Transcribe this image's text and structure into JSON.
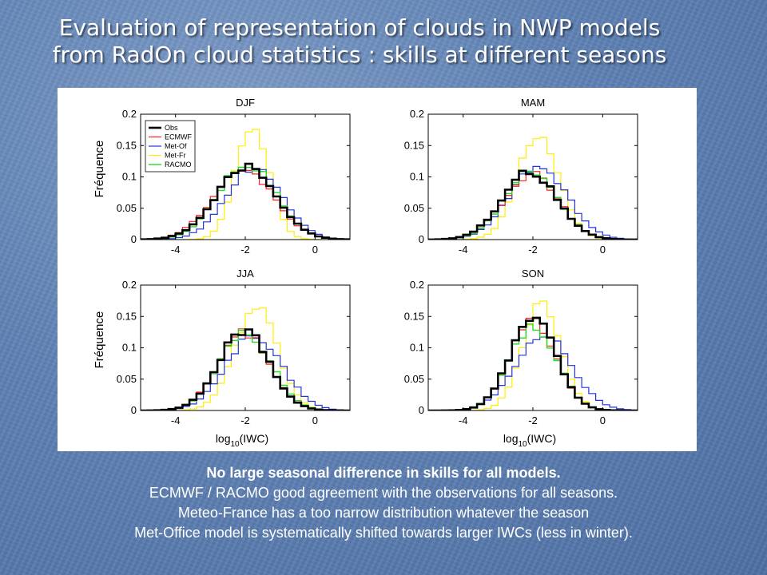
{
  "slide": {
    "title_line1": "Evaluation of representation of clouds in NWP models",
    "title_line2": "from RadOn cloud statistics : skills at different seasons",
    "caption_line1": "No large seasonal difference in skills for all models.",
    "caption_line2": "ECMWF / RACMO good agreement with the observations for all seasons.",
    "caption_line3": "Meteo-France has a too narrow distribution whatever the season",
    "caption_line4": "Met-Office model is systematically shifted towards larger IWCs (less in winter)."
  },
  "colors": {
    "Obs": "#000000",
    "ECMWF": "#ff2222",
    "Met-Of": "#2233dd",
    "Met-Fr": "#ffee00",
    "RACMO": "#22dd22"
  },
  "chart_data": [
    {
      "type": "line",
      "title": "DJF",
      "xlabel": "",
      "ylabel": "Fréquence",
      "xlim": [
        -5,
        1
      ],
      "ylim": [
        0,
        0.2
      ],
      "xticks": [
        -4,
        -2,
        0
      ],
      "yticks": [
        0,
        0.05,
        0.1,
        0.15,
        0.2
      ],
      "ytick_labels": [
        "0",
        "0.05",
        "0.1",
        "0.15",
        "0.2"
      ],
      "legend": [
        "Obs",
        "ECMWF",
        "Met-Of",
        "Met-Fr",
        "RACMO"
      ],
      "legend_position": "top-left",
      "series": [
        {
          "name": "Obs",
          "mean": -2.0,
          "sd": 0.85,
          "peak": 0.115
        },
        {
          "name": "ECMWF",
          "mean": -2.05,
          "sd": 0.87,
          "peak": 0.112
        },
        {
          "name": "Met-Of",
          "mean": -1.75,
          "sd": 0.8,
          "peak": 0.115
        },
        {
          "name": "Met-Fr",
          "mean": -1.8,
          "sd": 0.48,
          "peak": 0.183
        },
        {
          "name": "RACMO",
          "mean": -1.95,
          "sd": 0.82,
          "peak": 0.122
        }
      ]
    },
    {
      "type": "line",
      "title": "MAM",
      "xlabel": "",
      "ylabel": "",
      "xlim": [
        -5,
        1
      ],
      "ylim": [
        0,
        0.2
      ],
      "xticks": [
        -4,
        -2,
        0
      ],
      "yticks": [
        0,
        0.05,
        0.1,
        0.15,
        0.2
      ],
      "ytick_labels": [
        "0",
        "0.05",
        "0.1",
        "0.15",
        "0.2"
      ],
      "series": [
        {
          "name": "Obs",
          "mean": -2.1,
          "sd": 0.78,
          "peak": 0.108
        },
        {
          "name": "ECMWF",
          "mean": -2.05,
          "sd": 0.78,
          "peak": 0.105
        },
        {
          "name": "Met-Of",
          "mean": -1.85,
          "sd": 0.82,
          "peak": 0.117
        },
        {
          "name": "Met-Fr",
          "mean": -1.85,
          "sd": 0.6,
          "peak": 0.163
        },
        {
          "name": "RACMO",
          "mean": -2.05,
          "sd": 0.76,
          "peak": 0.11
        }
      ]
    },
    {
      "type": "line",
      "title": "JJA",
      "xlabel": "log10(IWC)",
      "ylabel": "Fréquence",
      "xlim": [
        -5,
        1
      ],
      "ylim": [
        0,
        0.2
      ],
      "xticks": [
        -4,
        -2,
        0
      ],
      "yticks": [
        0,
        0.05,
        0.1,
        0.15,
        0.2
      ],
      "ytick_labels": [
        "0",
        "0.05",
        "0.1",
        "0.15",
        "0.2"
      ],
      "series": [
        {
          "name": "Obs",
          "mean": -2.05,
          "sd": 0.72,
          "peak": 0.128
        },
        {
          "name": "ECMWF",
          "mean": -2.05,
          "sd": 0.73,
          "peak": 0.125
        },
        {
          "name": "Met-Of",
          "mean": -1.75,
          "sd": 0.8,
          "peak": 0.12
        },
        {
          "name": "Met-Fr",
          "mean": -1.7,
          "sd": 0.62,
          "peak": 0.163
        },
        {
          "name": "RACMO",
          "mean": -2.0,
          "sd": 0.74,
          "peak": 0.123
        }
      ]
    },
    {
      "type": "line",
      "title": "SON",
      "xlabel": "log10(IWC)",
      "ylabel": "",
      "xlim": [
        -5,
        1
      ],
      "ylim": [
        0,
        0.2
      ],
      "xticks": [
        -4,
        -2,
        0
      ],
      "yticks": [
        0,
        0.05,
        0.1,
        0.15,
        0.2
      ],
      "ytick_labels": [
        "0",
        "0.05",
        "0.1",
        "0.15",
        "0.2"
      ],
      "series": [
        {
          "name": "Obs",
          "mean": -2.0,
          "sd": 0.65,
          "peak": 0.148
        },
        {
          "name": "ECMWF",
          "mean": -2.0,
          "sd": 0.66,
          "peak": 0.143
        },
        {
          "name": "Met-Of",
          "mean": -1.7,
          "sd": 0.8,
          "peak": 0.12
        },
        {
          "name": "Met-Fr",
          "mean": -1.75,
          "sd": 0.55,
          "peak": 0.175
        },
        {
          "name": "RACMO",
          "mean": -2.0,
          "sd": 0.68,
          "peak": 0.135
        }
      ]
    }
  ]
}
